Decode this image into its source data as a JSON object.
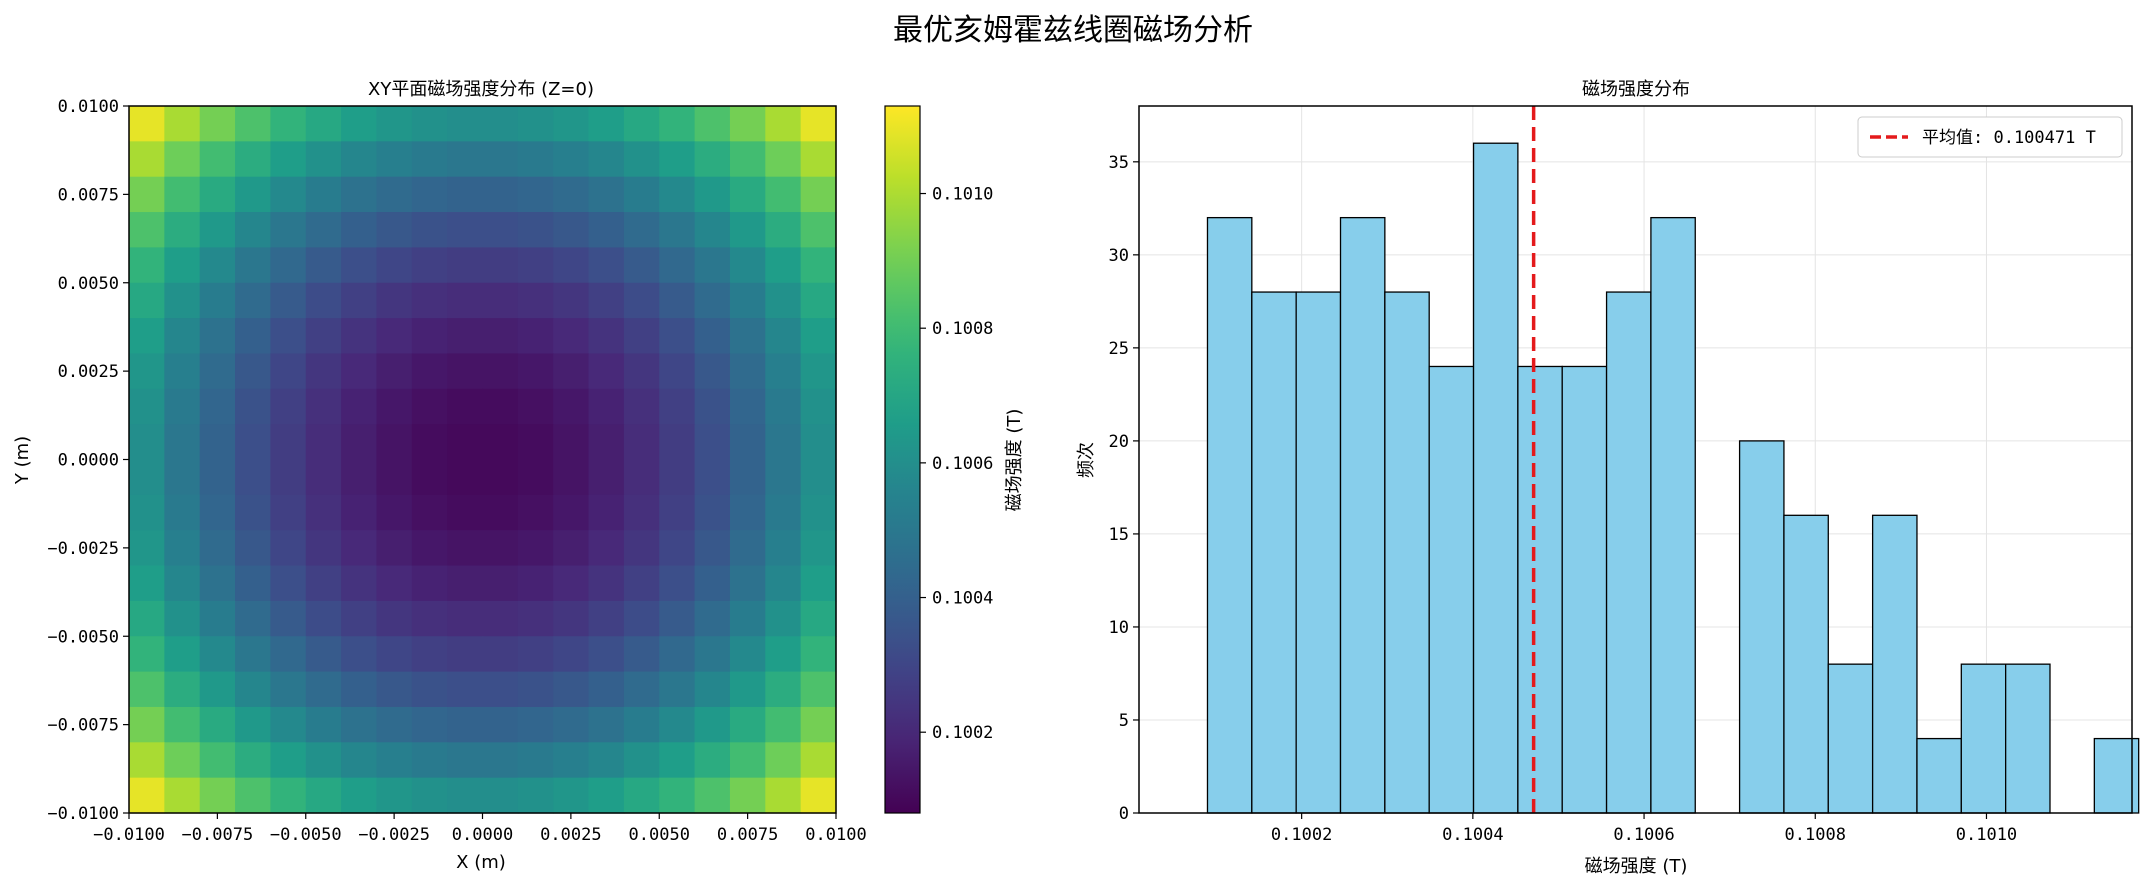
{
  "figure": {
    "suptitle": "最优亥姆霍兹线圈磁场分析"
  },
  "chart_data": [
    {
      "type": "heatmap",
      "title": "XY平面磁场强度分布 (Z=0)",
      "xlabel": "X (m)",
      "ylabel": "Y (m)",
      "xlim": [
        -0.01,
        0.01
      ],
      "ylim": [
        -0.01,
        0.01
      ],
      "grid_size": 20,
      "colormap": "viridis",
      "value_model": "B(x,y) = 0.10010 + 5.5*(x^2+y^2) at cell centers, range approx 0.10010 to 0.10112 T",
      "x_ticks": [
        "-0.0100",
        "-0.0075",
        "-0.0050",
        "-0.0025",
        "0.0000",
        "0.0025",
        "0.0050",
        "0.0075",
        "0.0100"
      ],
      "y_ticks": [
        "-0.0100",
        "-0.0075",
        "-0.0050",
        "-0.0025",
        "0.0000",
        "0.0025",
        "0.0050",
        "0.0075",
        "0.0100"
      ],
      "colorbar": {
        "label": "磁场强度 (T)",
        "range": [
          0.10008,
          0.10113
        ],
        "ticks": [
          "0.1002",
          "0.1004",
          "0.1006",
          "0.1008",
          "0.1010"
        ],
        "tick_values": [
          0.1002,
          0.1004,
          0.1006,
          0.1008,
          0.101
        ]
      }
    },
    {
      "type": "bar",
      "subtype": "histogram",
      "title": "磁场强度分布",
      "xlabel": "磁场强度 (T)",
      "ylabel": "频次",
      "xlim": [
        0.10001,
        0.10117
      ],
      "ylim": [
        0,
        38
      ],
      "bin_start": 0.10009,
      "bin_width": 5.18e-05,
      "counts": [
        32,
        28,
        28,
        32,
        28,
        24,
        36,
        24,
        24,
        28,
        32,
        0,
        20,
        16,
        8,
        16,
        4,
        8,
        8,
        0,
        4
      ],
      "bar_color": "#87CEEB",
      "edge_color": "#000000",
      "x_ticks": [
        "0.1002",
        "0.1004",
        "0.1006",
        "0.1008",
        "0.1010"
      ],
      "x_tick_values": [
        0.1002,
        0.1004,
        0.1006,
        0.1008,
        0.101
      ],
      "y_ticks": [
        "0",
        "5",
        "10",
        "15",
        "20",
        "25",
        "30",
        "35"
      ],
      "y_tick_values": [
        0,
        5,
        10,
        15,
        20,
        25,
        30,
        35
      ],
      "mean_value": 0.100471,
      "mean_color": "#e41a1c",
      "legend": {
        "label": "平均值: 0.100471 T",
        "placement": "upper right"
      },
      "grid": true
    }
  ]
}
